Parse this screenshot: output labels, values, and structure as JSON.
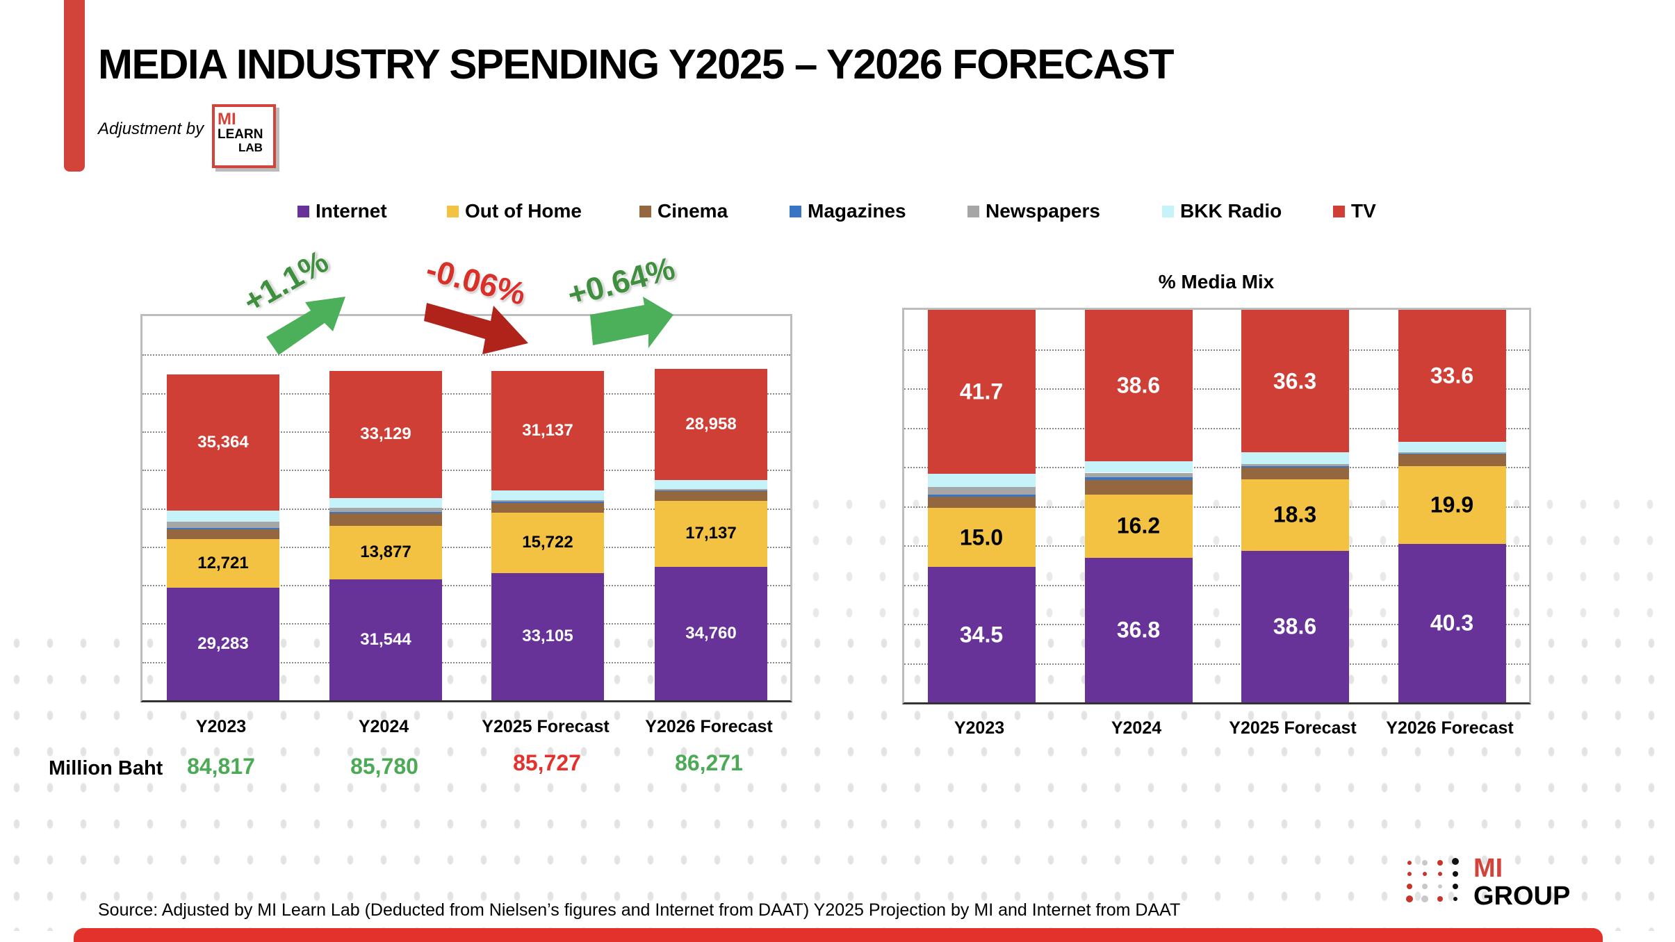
{
  "header": {
    "title": "MEDIA INDUSTRY SPENDING Y2025 – Y2026 FORECAST",
    "adjustment_label": "Adjustment by",
    "logo_text": [
      "MI",
      "LEARN",
      "LAB"
    ]
  },
  "legend": [
    {
      "name": "Internet",
      "color": "#673399"
    },
    {
      "name": "Out of Home",
      "color": "#f3c242"
    },
    {
      "name": "Cinema",
      "color": "#94673e"
    },
    {
      "name": "Magazines",
      "color": "#3a74c4"
    },
    {
      "name": "Newspapers",
      "color": "#a6a6a6"
    },
    {
      "name": "BKK Radio",
      "color": "#c6f3fa"
    },
    {
      "name": "TV",
      "color": "#cf3f35"
    }
  ],
  "growth": [
    {
      "label": "+1.1%",
      "color": "#3f8f3f",
      "direction": "up"
    },
    {
      "label": "-0.06%",
      "color": "#d9302a",
      "direction": "down"
    },
    {
      "label": "+0.64%",
      "color": "#3f8f3f",
      "direction": "up"
    }
  ],
  "totals": {
    "label": "Million Baht",
    "values": [
      {
        "text": "84,817",
        "color": "#4caa57"
      },
      {
        "text": "85,780",
        "color": "#4caa57"
      },
      {
        "text": "85,727",
        "color": "#e5312d"
      },
      {
        "text": "86,271",
        "color": "#4caa57"
      }
    ]
  },
  "chart_data": [
    {
      "type": "bar",
      "stacked": true,
      "title": "",
      "unit": "Million Baht",
      "categories": [
        "Y2023",
        "Y2024",
        "Y2025 Forecast",
        "Y2026 Forecast"
      ],
      "ylim": [
        0,
        100000
      ],
      "grid": true,
      "legend": "top",
      "series": [
        {
          "name": "Internet",
          "values": [
            29283,
            31544,
            33105,
            34760
          ],
          "labels": [
            "29,283",
            "31,544",
            "33,105",
            "34,760"
          ],
          "label_color": "#ffffff"
        },
        {
          "name": "Out of Home",
          "values": [
            12721,
            13877,
            15722,
            17137
          ],
          "labels": [
            "12,721",
            "13,877",
            "15,722",
            "17,137"
          ],
          "label_color": "#000000"
        },
        {
          "name": "Cinema",
          "values": [
            2430,
            3150,
            2560,
            2676
          ]
        },
        {
          "name": "Magazines",
          "values": [
            500,
            480,
            280,
            100
          ]
        },
        {
          "name": "Newspapers",
          "values": [
            1620,
            1040,
            420,
            280
          ]
        },
        {
          "name": "BKK Radio",
          "values": [
            2899,
            2560,
            2503,
            2360
          ]
        },
        {
          "name": "TV",
          "values": [
            35364,
            33129,
            31137,
            28958
          ],
          "labels": [
            "35,364",
            "33,129",
            "31,137",
            "28,958"
          ],
          "label_color": "#ffffff"
        }
      ]
    },
    {
      "type": "bar",
      "stacked": true,
      "title": "% Media Mix",
      "categories": [
        "Y2023",
        "Y2024",
        "Y2025 Forecast",
        "Y2026 Forecast"
      ],
      "ylim": [
        0,
        100
      ],
      "grid": true,
      "series": [
        {
          "name": "Internet",
          "values": [
            34.5,
            36.8,
            38.6,
            40.3
          ],
          "labels": [
            "34.5",
            "36.8",
            "38.6",
            "40.3"
          ],
          "label_color": "#ffffff"
        },
        {
          "name": "Out of Home",
          "values": [
            15.0,
            16.2,
            18.3,
            19.9
          ],
          "labels": [
            "15.0",
            "16.2",
            "18.3",
            "19.9"
          ],
          "label_color": "#000000"
        },
        {
          "name": "Cinema",
          "values": [
            2.9,
            3.7,
            3.0,
            3.1
          ]
        },
        {
          "name": "Magazines",
          "values": [
            0.6,
            0.6,
            0.3,
            0.1
          ]
        },
        {
          "name": "Newspapers",
          "values": [
            1.9,
            1.2,
            0.5,
            0.3
          ]
        },
        {
          "name": "BKK Radio",
          "values": [
            3.4,
            2.9,
            3.0,
            2.7
          ]
        },
        {
          "name": "TV",
          "values": [
            41.7,
            38.6,
            36.3,
            33.6
          ],
          "labels": [
            "41.7",
            "38.6",
            "36.3",
            "33.6"
          ],
          "label_color": "#ffffff"
        }
      ]
    }
  ],
  "footer": {
    "source": "Source: Adjusted by MI Learn Lab (Deducted  from Nielsen’s figures and Internet from DAAT) Y2025 Projection by MI and Internet from DAAT",
    "logo_text": [
      "MI",
      "GROUP"
    ]
  }
}
